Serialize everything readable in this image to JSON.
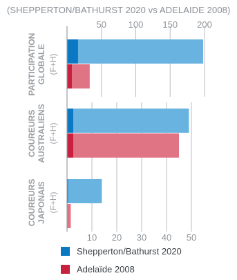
{
  "chart_data": {
    "type": "bar",
    "subtitle": "(SHEPPERTON/BATHURST 2020 vs ADELAIDE 2008)",
    "groups": [
      {
        "label_lines": [
          "PARTICIPATION",
          "GLOBALE"
        ],
        "sub": "(F+H)",
        "axis": "top",
        "series_values": [
          {
            "dark": 16,
            "light": 198
          },
          {
            "dark": 7,
            "light": 33
          }
        ],
        "xlim": [
          0,
          200
        ]
      },
      {
        "label_lines": [
          "COUREURS",
          "AUSTRALIENS"
        ],
        "sub": "(F+H)",
        "axis": "bottom",
        "series_values": [
          {
            "dark": 2.5,
            "light": 49
          },
          {
            "dark": 2.5,
            "light": 45
          }
        ],
        "xlim": [
          0,
          50
        ]
      },
      {
        "label_lines": [
          "COUREURS",
          "JAPONAIS"
        ],
        "sub": "(F+H)",
        "axis": "bottom",
        "series_values": [
          {
            "dark": 0.4,
            "light": 14
          },
          {
            "dark": 0,
            "light": 1.5
          }
        ],
        "xlim": [
          0,
          50
        ]
      }
    ],
    "top_axis": {
      "ticks": [
        50,
        100,
        150,
        200
      ],
      "range": [
        0,
        200
      ]
    },
    "bottom_axis": {
      "ticks": [
        10,
        20,
        30,
        40,
        50
      ],
      "range": [
        0,
        50
      ]
    },
    "series": [
      {
        "name": "Shepperton/Bathurst 2020",
        "dark_color": "#0b78c4",
        "light_color": "#69b3e0"
      },
      {
        "name": "Adelaïde 2008",
        "dark_color": "#c8203f",
        "light_color": "#e07384"
      }
    ],
    "grid": true
  }
}
